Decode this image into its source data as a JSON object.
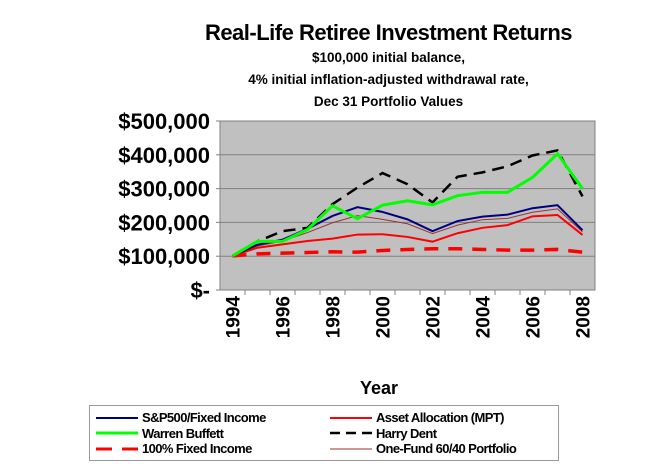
{
  "chart_data": {
    "type": "line",
    "title": "Real-Life Retiree Investment Returns",
    "subtitle": [
      "$100,000 initial balance,",
      "4% initial inflation-adjusted withdrawal rate,",
      "Dec 31 Portfolio Values"
    ],
    "xlabel": "Year",
    "ylabel": "",
    "x": [
      1994,
      1995,
      1996,
      1997,
      1998,
      1999,
      2000,
      2001,
      2002,
      2003,
      2004,
      2005,
      2006,
      2007,
      2008
    ],
    "x_tick_labels": [
      "1994",
      "1996",
      "1998",
      "2000",
      "2002",
      "2004",
      "2006",
      "2008"
    ],
    "y_tick_labels": [
      "$-",
      "$100,000",
      "$200,000",
      "$300,000",
      "$400,000",
      "$500,000"
    ],
    "ylim": [
      0,
      500000
    ],
    "grid": true,
    "plot_background": "#c0c0c0",
    "legend_position": "bottom",
    "series": [
      {
        "name": "S&P500/Fixed Income",
        "color": "#000080",
        "dash": "solid",
        "width": 2,
        "values": [
          101000,
          134000,
          149000,
          181000,
          219000,
          245000,
          231000,
          209000,
          174000,
          204000,
          217000,
          223000,
          242000,
          251000,
          177000
        ]
      },
      {
        "name": "Asset Allocation (MPT)",
        "color": "#ff0000",
        "dash": "solid",
        "width": 2,
        "values": [
          101000,
          125000,
          135000,
          145000,
          152000,
          164000,
          165000,
          157000,
          143000,
          168000,
          184000,
          192000,
          218000,
          222000,
          163000
        ]
      },
      {
        "name": "Warren Buffett",
        "color": "#00ff00",
        "dash": "solid",
        "width": 3,
        "values": [
          101000,
          144000,
          144000,
          179000,
          249000,
          211000,
          251000,
          264000,
          252000,
          279000,
          289000,
          289000,
          333000,
          403000,
          300000
        ]
      },
      {
        "name": "Harry Dent",
        "color": "#000000",
        "dash": "dashed",
        "width": 2.5,
        "values": [
          101000,
          144000,
          174000,
          184000,
          254000,
          303000,
          346000,
          313000,
          259000,
          335000,
          348000,
          366000,
          398000,
          413000,
          277000
        ]
      },
      {
        "name": "100% Fixed Income",
        "color": "#ff0000",
        "dash": "dashed",
        "width": 3.5,
        "values": [
          101000,
          107000,
          109000,
          111000,
          113000,
          112000,
          117000,
          120000,
          122000,
          122000,
          120000,
          118000,
          118000,
          120000,
          112000
        ]
      },
      {
        "name": "One-Fund 60/40 Portfolio",
        "color": "#993333",
        "dash": "solid",
        "width": 1,
        "values": [
          101000,
          130000,
          145000,
          170000,
          199000,
          220000,
          209000,
          196000,
          167000,
          192000,
          208000,
          212000,
          230000,
          240000,
          172000
        ]
      }
    ]
  }
}
